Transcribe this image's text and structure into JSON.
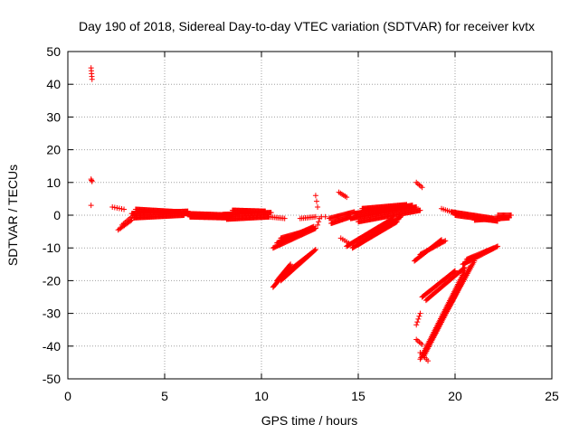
{
  "chart_data": {
    "type": "scatter",
    "title": "Day 190 of 2018, Sidereal Day-to-day VTEC variation (SDTVAR) for receiver kvtx",
    "xlabel": "GPS time / hours",
    "ylabel": "SDTVAR / TECUs",
    "xlim": [
      0,
      25
    ],
    "ylim": [
      -50,
      50
    ],
    "xticks": [
      0,
      5,
      10,
      15,
      20,
      25
    ],
    "yticks": [
      -50,
      -40,
      -30,
      -20,
      -10,
      0,
      10,
      20,
      30,
      40,
      50
    ],
    "grid": true,
    "marker": "+",
    "color": "#ff0000",
    "segments": [
      {
        "x0": 1.2,
        "x1": 1.25,
        "y0": 45,
        "y1": 41.5,
        "n": 5
      },
      {
        "x0": 1.2,
        "x1": 1.25,
        "y0": 11,
        "y1": 10.3,
        "n": 3
      },
      {
        "x0": 1.2,
        "x1": 1.2,
        "y0": 3,
        "y1": 3,
        "n": 1
      },
      {
        "x0": 2.3,
        "x1": 2.9,
        "y0": 2.5,
        "y1": 1.8,
        "n": 6
      },
      {
        "x0": 2.6,
        "x1": 3.3,
        "y0": -4.5,
        "y1": -1.5,
        "n": 12
      },
      {
        "x0": 2.8,
        "x1": 3.5,
        "y0": -3,
        "y1": 0.5,
        "n": 10
      },
      {
        "x0": 3.3,
        "x1": 6.2,
        "y0": 0.5,
        "y1": 1.2,
        "n": 80
      },
      {
        "x0": 3.4,
        "x1": 6.0,
        "y0": -0.8,
        "y1": 0,
        "n": 70
      },
      {
        "x0": 3.5,
        "x1": 5.8,
        "y0": 1.8,
        "y1": 1.0,
        "n": 60
      },
      {
        "x0": 6.0,
        "x1": 8.5,
        "y0": 0.5,
        "y1": 0,
        "n": 70
      },
      {
        "x0": 6.3,
        "x1": 8.3,
        "y0": -0.5,
        "y1": -0.8,
        "n": 60
      },
      {
        "x0": 8.0,
        "x1": 10.5,
        "y0": 0.2,
        "y1": 0.8,
        "n": 70
      },
      {
        "x0": 8.2,
        "x1": 10.4,
        "y0": -1.2,
        "y1": -0.5,
        "n": 60
      },
      {
        "x0": 8.5,
        "x1": 10.2,
        "y0": 1.5,
        "y1": 1.2,
        "n": 50
      },
      {
        "x0": 10.4,
        "x1": 11.2,
        "y0": -0.5,
        "y1": -1,
        "n": 10
      },
      {
        "x0": 10.6,
        "x1": 12.8,
        "y0": -10,
        "y1": -4,
        "n": 50
      },
      {
        "x0": 10.8,
        "x1": 12.7,
        "y0": -8.5,
        "y1": -3.5,
        "n": 45
      },
      {
        "x0": 11.0,
        "x1": 12.5,
        "y0": -7,
        "y1": -4.5,
        "n": 35
      },
      {
        "x0": 10.6,
        "x1": 11.3,
        "y0": -22,
        "y1": -17,
        "n": 20
      },
      {
        "x0": 10.8,
        "x1": 11.5,
        "y0": -20,
        "y1": -15,
        "n": 18
      },
      {
        "x0": 11.0,
        "x1": 12.8,
        "y0": -20,
        "y1": -10.5,
        "n": 40
      },
      {
        "x0": 11.2,
        "x1": 12.6,
        "y0": -18,
        "y1": -11.5,
        "n": 30
      },
      {
        "x0": 12.0,
        "x1": 12.8,
        "y0": -1,
        "y1": -0.5,
        "n": 10
      },
      {
        "x0": 12.8,
        "x1": 12.9,
        "y0": 6,
        "y1": 2.5,
        "n": 3
      },
      {
        "x0": 12.9,
        "x1": 13.0,
        "y0": -3,
        "y1": -1,
        "n": 3
      },
      {
        "x0": 13.1,
        "x1": 13.3,
        "y0": -0.5,
        "y1": -0.5,
        "n": 2
      },
      {
        "x0": 13.5,
        "x1": 14.8,
        "y0": -1,
        "y1": 1,
        "n": 30
      },
      {
        "x0": 13.6,
        "x1": 14.6,
        "y0": -2.5,
        "y1": -0.5,
        "n": 25
      },
      {
        "x0": 14.0,
        "x1": 14.4,
        "y0": 7,
        "y1": 5.5,
        "n": 6
      },
      {
        "x0": 14.1,
        "x1": 14.5,
        "y0": -7,
        "y1": -8.5,
        "n": 5
      },
      {
        "x0": 14.6,
        "x1": 18.0,
        "y0": -1,
        "y1": 2.5,
        "n": 90
      },
      {
        "x0": 14.8,
        "x1": 17.8,
        "y0": 0.5,
        "y1": 3,
        "n": 80
      },
      {
        "x0": 15.0,
        "x1": 18.2,
        "y0": -2,
        "y1": 1.5,
        "n": 80
      },
      {
        "x0": 15.2,
        "x1": 17.5,
        "y0": 2,
        "y1": 3.2,
        "n": 60
      },
      {
        "x0": 14.4,
        "x1": 16.8,
        "y0": -9.5,
        "y1": -1,
        "n": 60
      },
      {
        "x0": 14.7,
        "x1": 17.0,
        "y0": -10,
        "y1": -2,
        "n": 55
      },
      {
        "x0": 15.0,
        "x1": 17.2,
        "y0": -9,
        "y1": -0.5,
        "n": 50
      },
      {
        "x0": 18.0,
        "x1": 18.3,
        "y0": 10,
        "y1": 8.5,
        "n": 5
      },
      {
        "x0": 17.9,
        "x1": 19.3,
        "y0": -14,
        "y1": -7.5,
        "n": 30
      },
      {
        "x0": 18.2,
        "x1": 19.5,
        "y0": -12,
        "y1": -7.8,
        "n": 25
      },
      {
        "x0": 18.3,
        "x1": 20.0,
        "y0": -25,
        "y1": -17,
        "n": 40
      },
      {
        "x0": 18.5,
        "x1": 20.5,
        "y0": -26,
        "y1": -16,
        "n": 40
      },
      {
        "x0": 18.0,
        "x1": 18.2,
        "y0": -33.5,
        "y1": -30,
        "n": 5
      },
      {
        "x0": 18.0,
        "x1": 18.3,
        "y0": -38,
        "y1": -39.5,
        "n": 5
      },
      {
        "x0": 18.2,
        "x1": 20.5,
        "y0": -44,
        "y1": -17,
        "n": 60
      },
      {
        "x0": 18.4,
        "x1": 20.8,
        "y0": -43,
        "y1": -15.5,
        "n": 60
      },
      {
        "x0": 18.6,
        "x1": 21.0,
        "y0": -40,
        "y1": -14,
        "n": 55
      },
      {
        "x0": 18.2,
        "x1": 18.6,
        "y0": -42,
        "y1": -44.5,
        "n": 6
      },
      {
        "x0": 20.4,
        "x1": 22.2,
        "y0": -15,
        "y1": -9.5,
        "n": 40
      },
      {
        "x0": 20.6,
        "x1": 22.0,
        "y0": -13.5,
        "y1": -10,
        "n": 30
      },
      {
        "x0": 19.3,
        "x1": 19.8,
        "y0": 2,
        "y1": 1,
        "n": 6
      },
      {
        "x0": 19.8,
        "x1": 22.0,
        "y0": 1,
        "y1": -1,
        "n": 55
      },
      {
        "x0": 20.0,
        "x1": 22.2,
        "y0": 0,
        "y1": -1.8,
        "n": 55
      },
      {
        "x0": 21.0,
        "x1": 22.8,
        "y0": -1.5,
        "y1": -0.8,
        "n": 40
      },
      {
        "x0": 22.2,
        "x1": 22.9,
        "y0": 0,
        "y1": 0,
        "n": 15
      }
    ]
  }
}
